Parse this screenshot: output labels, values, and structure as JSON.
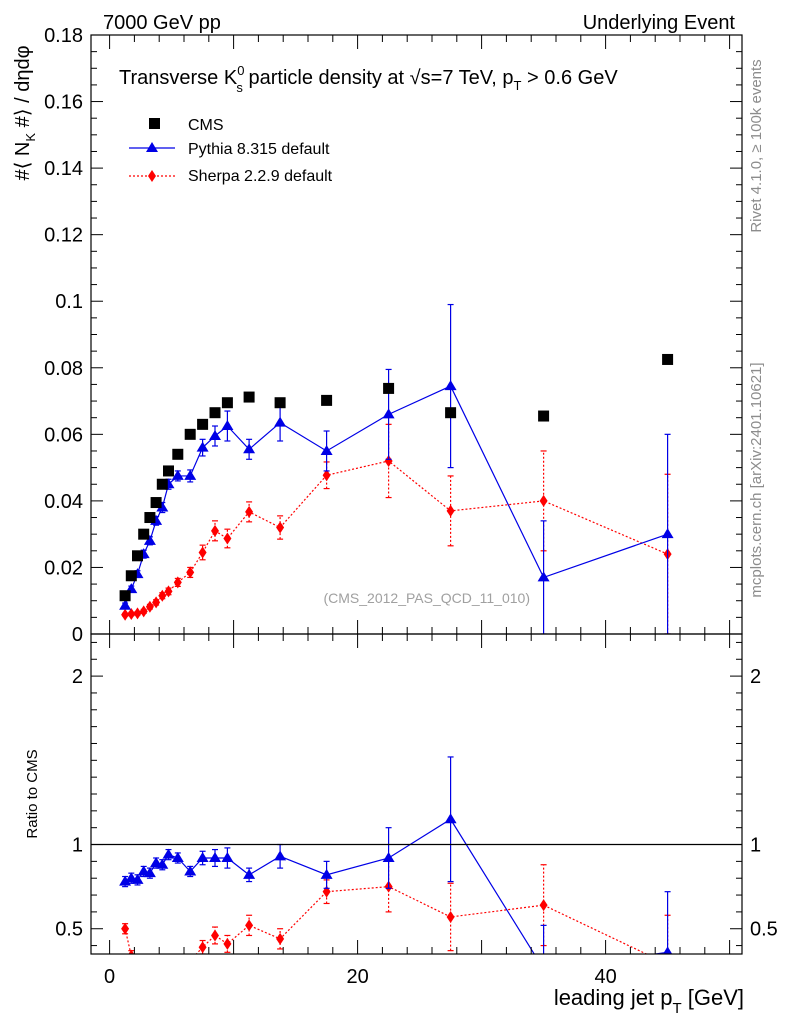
{
  "header": {
    "left": "7000 GeV pp",
    "right": "Underlying Event"
  },
  "side_labels": {
    "rivet": "Rivet 4.1.0, ≥ 100k events",
    "mcplots": "mcplots.cern.ch [arXiv:2401.10621]"
  },
  "chart_data": {
    "type": "scatter",
    "title_parts": {
      "pre": "Transverse K",
      "sup": "0",
      "sub": "s",
      "post1": " particle density at ",
      "sqrt": "√",
      "s_eq": "s=7 TeV, p",
      "pt_sub": "T",
      "post2": " > 0.6 GeV"
    },
    "ylabel_parts": {
      "a": "#⟨ N",
      "sub": "K",
      "b": " #⟩ / dηdφ"
    },
    "ratio_ylabel": "Ratio to CMS",
    "xlabel_parts": {
      "a": "leading jet p",
      "sub": "T",
      "b": " [GeV]"
    },
    "watermark": "(CMS_2012_PAS_QCD_11_010)",
    "xlim": [
      -1.5,
      51
    ],
    "main_ylim": [
      0,
      0.18
    ],
    "ratio_ylim": [
      0.35,
      2.25
    ],
    "main_yticks": [
      "0",
      "0.02",
      "0.04",
      "0.06",
      "0.08",
      "0.1",
      "0.12",
      "0.14",
      "0.16",
      "0.18"
    ],
    "main_ytick_values": [
      0,
      0.02,
      0.04,
      0.06,
      0.08,
      0.1,
      0.12,
      0.14,
      0.16,
      0.18
    ],
    "ratio_yticks": [
      "0.5",
      "1",
      "2"
    ],
    "ratio_ytick_values": [
      0.5,
      1,
      2
    ],
    "xticks": [
      "0",
      "20",
      "40"
    ],
    "xtick_values": [
      0,
      20,
      40
    ],
    "series": [
      {
        "name": "CMS",
        "marker": "square",
        "color": "#000000",
        "x": [
          1.25,
          1.75,
          2.25,
          2.75,
          3.25,
          3.75,
          4.25,
          4.75,
          5.5,
          6.5,
          7.5,
          8.5,
          9.5,
          11.25,
          13.75,
          17.5,
          22.5,
          27.5,
          35.0,
          45.0
        ],
        "y": [
          0.0115,
          0.0175,
          0.0235,
          0.03,
          0.035,
          0.0395,
          0.045,
          0.049,
          0.054,
          0.06,
          0.063,
          0.0665,
          0.0695,
          0.0712,
          0.0695,
          0.0702,
          0.0738,
          0.0665,
          0.0655,
          0.0825
        ],
        "err": [
          0,
          0,
          0,
          0,
          0,
          0,
          0,
          0,
          0,
          0,
          0,
          0,
          0,
          0,
          0,
          0,
          0,
          0,
          0,
          0
        ]
      },
      {
        "name": "Pythia 8.315 default",
        "marker": "triangle",
        "color": "#0000e6",
        "line": "solid",
        "x": [
          1.25,
          1.75,
          2.25,
          2.75,
          3.25,
          3.75,
          4.25,
          4.75,
          5.5,
          6.5,
          7.5,
          8.5,
          9.5,
          11.25,
          13.75,
          17.5,
          22.5,
          27.5,
          35.0,
          45.0
        ],
        "y": [
          0.0085,
          0.0135,
          0.018,
          0.024,
          0.028,
          0.034,
          0.038,
          0.045,
          0.0475,
          0.0475,
          0.056,
          0.0595,
          0.0625,
          0.0555,
          0.0635,
          0.055,
          0.066,
          0.0745,
          0.017,
          0.03
        ],
        "err": [
          0.0008,
          0.0009,
          0.001,
          0.0012,
          0.0012,
          0.0013,
          0.0015,
          0.0015,
          0.0015,
          0.0018,
          0.0025,
          0.003,
          0.0045,
          0.003,
          0.0055,
          0.006,
          0.0135,
          0.0245,
          0.017,
          0.03
        ]
      },
      {
        "name": "Sherpa 2.2.9 default",
        "marker": "diamond",
        "color": "#ff0000",
        "line": "dotted",
        "x": [
          1.25,
          1.75,
          2.25,
          2.75,
          3.25,
          3.75,
          4.25,
          4.75,
          5.5,
          6.5,
          7.5,
          8.5,
          9.5,
          11.25,
          13.75,
          17.5,
          22.5,
          27.5,
          35.0,
          45.0
        ],
        "y": [
          0.0058,
          0.006,
          0.0062,
          0.0068,
          0.0082,
          0.0095,
          0.0115,
          0.0128,
          0.0155,
          0.0185,
          0.0245,
          0.031,
          0.0287,
          0.0367,
          0.032,
          0.0477,
          0.052,
          0.037,
          0.04,
          0.024
        ],
        "err": [
          0.0004,
          0.0005,
          0.0005,
          0.0006,
          0.0007,
          0.0008,
          0.0009,
          0.001,
          0.0012,
          0.0015,
          0.0022,
          0.003,
          0.0028,
          0.003,
          0.0035,
          0.004,
          0.011,
          0.0105,
          0.015,
          0.024
        ]
      }
    ],
    "ratio_series": [
      {
        "name": "Pythia 8.315 default",
        "x": [
          1.25,
          1.75,
          2.25,
          2.75,
          3.25,
          3.75,
          4.25,
          4.75,
          5.5,
          6.5,
          7.5,
          8.5,
          9.5,
          11.25,
          13.75,
          17.5,
          22.5,
          27.5,
          35.0,
          45.0
        ],
        "y": [
          0.78,
          0.8,
          0.79,
          0.84,
          0.83,
          0.89,
          0.88,
          0.94,
          0.92,
          0.84,
          0.92,
          0.92,
          0.92,
          0.82,
          0.93,
          0.82,
          0.92,
          1.15,
          0.26,
          0.36
        ],
        "err": [
          0.03,
          0.03,
          0.03,
          0.03,
          0.03,
          0.03,
          0.03,
          0.03,
          0.03,
          0.03,
          0.04,
          0.05,
          0.06,
          0.04,
          0.07,
          0.08,
          0.18,
          0.37,
          0.26,
          0.36
        ]
      },
      {
        "name": "Sherpa 2.2.9 default",
        "x": [
          1.25,
          1.75,
          2.25,
          2.75,
          3.25,
          3.75,
          4.25,
          4.75,
          5.5,
          6.5,
          7.5,
          8.5,
          9.5,
          11.25,
          13.75,
          17.5,
          22.5,
          27.5,
          35.0,
          45.0
        ],
        "y": [
          0.5,
          0.34,
          0.26,
          0.23,
          0.23,
          0.24,
          0.26,
          0.26,
          0.29,
          0.31,
          0.39,
          0.46,
          0.41,
          0.52,
          0.44,
          0.72,
          0.75,
          0.57,
          0.64,
          0.29
        ],
        "err": [
          0.03,
          0.03,
          0.03,
          0.03,
          0.03,
          0.03,
          0.03,
          0.03,
          0.03,
          0.03,
          0.04,
          0.05,
          0.05,
          0.06,
          0.06,
          0.07,
          0.15,
          0.2,
          0.24,
          0.29
        ]
      }
    ]
  }
}
